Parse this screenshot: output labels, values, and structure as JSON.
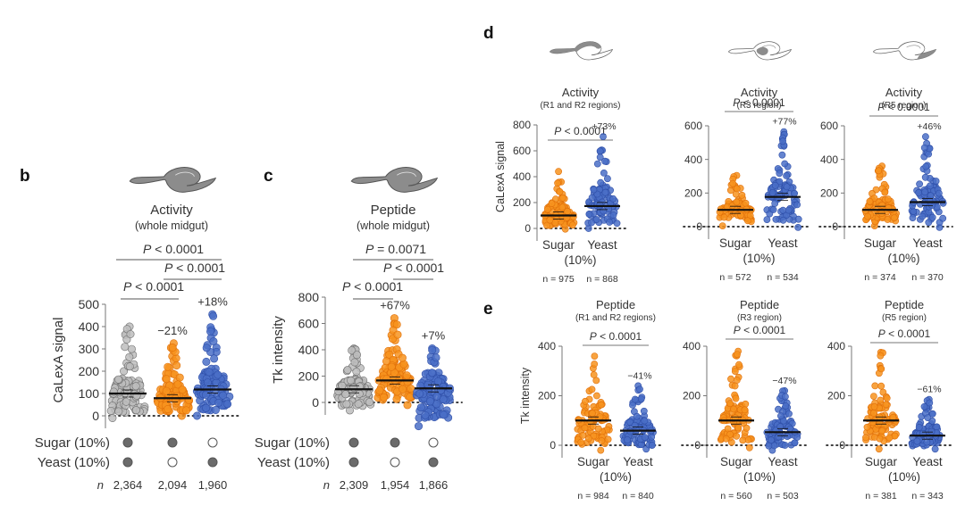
{
  "colors": {
    "sugar_only": "#f7931e",
    "sugar_only_edge": "#e0700a",
    "yeast_only": "#4a6fc7",
    "yeast_only_edge": "#2f4fa8",
    "both": "#bdbdbd",
    "both_edge": "#6e6e6e",
    "gut_fill": "#8c8c8c",
    "axis": "#777777",
    "text": "#333333"
  },
  "chart_data": [
    {
      "panel": "b",
      "type": "scatter",
      "subtype": "beeswarm",
      "title": "Activity",
      "subtitle": "(whole midgut)",
      "gut_highlight": "whole",
      "ylabel": "CaLexA signal",
      "ylim": [
        -20,
        500
      ],
      "yticks": [
        0,
        100,
        200,
        300,
        400,
        500
      ],
      "groups": [
        {
          "name": "Sugar + Yeast",
          "sugar": true,
          "yeast": true,
          "color_key": "both",
          "mean": 100,
          "max": 400,
          "min": -10,
          "n_label": "2,364",
          "change": ""
        },
        {
          "name": "Sugar only",
          "sugar": true,
          "yeast": false,
          "color_key": "sugar_only",
          "mean": 79,
          "max": 325,
          "min": 0,
          "n_label": "2,094",
          "change": "−21%"
        },
        {
          "name": "Yeast only",
          "sugar": false,
          "yeast": true,
          "color_key": "yeast_only",
          "mean": 118,
          "max": 455,
          "min": 0,
          "n_label": "1,960",
          "change": "+18%"
        }
      ],
      "comparisons": [
        {
          "from": 0,
          "to": 2,
          "label": "P < 0.0001",
          "p_prefix": "P",
          "p_rest": " < 0.0001"
        },
        {
          "from": 1,
          "to": 2,
          "label": "P < 0.0001",
          "p_prefix": "P",
          "p_rest": " < 0.0001"
        },
        {
          "from": 0,
          "to": 1,
          "label": "P < 0.0001",
          "p_prefix": "P",
          "p_rest": " < 0.0001"
        }
      ],
      "row_labels": [
        "Sugar (10%)",
        "Yeast (10%)"
      ],
      "n_prefix": "n"
    },
    {
      "panel": "c",
      "type": "scatter",
      "subtype": "beeswarm",
      "title": "Peptide",
      "subtitle": "(whole midgut)",
      "gut_highlight": "whole",
      "ylabel": "Tk intensity",
      "ylim": [
        -200,
        800
      ],
      "yticks": [
        0,
        200,
        400,
        600,
        800
      ],
      "groups": [
        {
          "name": "Sugar + Yeast",
          "sugar": true,
          "yeast": true,
          "color_key": "both",
          "mean": 100,
          "max": 410,
          "min": -60,
          "n_label": "2,309",
          "change": ""
        },
        {
          "name": "Sugar only",
          "sugar": true,
          "yeast": false,
          "color_key": "sugar_only",
          "mean": 167,
          "max": 640,
          "min": -20,
          "n_label": "1,954",
          "change": "+67%"
        },
        {
          "name": "Yeast only",
          "sugar": false,
          "yeast": true,
          "color_key": "yeast_only",
          "mean": 107,
          "max": 410,
          "min": -180,
          "n_label": "1,866",
          "change": "+7%"
        }
      ],
      "comparisons": [
        {
          "from": 0,
          "to": 2,
          "label": "P = 0.0071",
          "p_prefix": "P",
          "p_rest": " = 0.0071"
        },
        {
          "from": 1,
          "to": 2,
          "label": "P < 0.0001",
          "p_prefix": "P",
          "p_rest": " < 0.0001"
        },
        {
          "from": 0,
          "to": 1,
          "label": "P < 0.0001",
          "p_prefix": "P",
          "p_rest": " < 0.0001"
        }
      ],
      "row_labels": [
        "Sugar (10%)",
        "Yeast (10%)"
      ],
      "n_prefix": "n"
    },
    {
      "panel": "d",
      "type": "scatter",
      "subtype": "beeswarm",
      "title": "Activity",
      "subtitle": "(R1 and R2 regions)",
      "gut_highlight": "anterior",
      "ylabel": "CaLexA signal",
      "ylim": [
        -20,
        800
      ],
      "yticks": [
        0,
        200,
        400,
        600,
        800
      ],
      "groups": [
        {
          "name": "Sugar",
          "color_key": "sugar_only",
          "mean": 100,
          "max": 440,
          "min": -5,
          "n_label": "n = 975",
          "change": ""
        },
        {
          "name": "Yeast",
          "color_key": "yeast_only",
          "mean": 173,
          "max": 710,
          "min": 0,
          "n_label": "n = 868",
          "change": "+73%"
        }
      ],
      "comparisons": [
        {
          "from": 0,
          "to": 1,
          "label": "P < 0.0001",
          "p_prefix": "P",
          "p_rest": " < 0.0001"
        }
      ],
      "x_labels": [
        "Sugar",
        "Yeast"
      ],
      "x_sublabel": "(10%)"
    },
    {
      "panel": "d",
      "type": "scatter",
      "subtype": "beeswarm",
      "title": "Activity",
      "subtitle": "(R3 region)",
      "gut_highlight": "middle",
      "ylabel": "",
      "ylim": [
        -20,
        600
      ],
      "yticks": [
        0,
        200,
        400,
        600
      ],
      "groups": [
        {
          "name": "Sugar",
          "color_key": "sugar_only",
          "mean": 100,
          "max": 305,
          "min": 5,
          "n_label": "n = 572",
          "change": ""
        },
        {
          "name": "Yeast",
          "color_key": "yeast_only",
          "mean": 177,
          "max": 565,
          "min": -5,
          "n_label": "n = 534",
          "change": "+77%"
        }
      ],
      "comparisons": [
        {
          "from": 0,
          "to": 1,
          "label": "P < 0.0001",
          "p_prefix": "P",
          "p_rest": " < 0.0001"
        }
      ],
      "x_labels": [
        "Sugar",
        "Yeast"
      ],
      "x_sublabel": "(10%)"
    },
    {
      "panel": "d",
      "type": "scatter",
      "subtype": "beeswarm",
      "title": "Activity",
      "subtitle": "(R5 region)",
      "gut_highlight": "posterior",
      "ylabel": "",
      "ylim": [
        -20,
        600
      ],
      "yticks": [
        0,
        200,
        400,
        600
      ],
      "groups": [
        {
          "name": "Sugar",
          "color_key": "sugar_only",
          "mean": 100,
          "max": 360,
          "min": 5,
          "n_label": "n = 374",
          "change": ""
        },
        {
          "name": "Yeast",
          "color_key": "yeast_only",
          "mean": 146,
          "max": 535,
          "min": -5,
          "n_label": "n = 370",
          "change": "+46%"
        }
      ],
      "comparisons": [
        {
          "from": 0,
          "to": 1,
          "label": "P < 0.0001",
          "p_prefix": "P",
          "p_rest": " < 0.0001"
        }
      ],
      "x_labels": [
        "Sugar",
        "Yeast"
      ],
      "x_sublabel": "(10%)"
    },
    {
      "panel": "e",
      "type": "scatter",
      "subtype": "beeswarm",
      "title": "Peptide",
      "subtitle": "(R1 and R2 regions)",
      "ylabel": "Tk intensity",
      "ylim": [
        -25,
        400
      ],
      "yticks": [
        0,
        200,
        400
      ],
      "groups": [
        {
          "name": "Sugar",
          "color_key": "sugar_only",
          "mean": 100,
          "max": 360,
          "min": -20,
          "n_label": "n = 984",
          "change": ""
        },
        {
          "name": "Yeast",
          "color_key": "yeast_only",
          "mean": 59,
          "max": 240,
          "min": -15,
          "n_label": "n = 840",
          "change": "−41%"
        }
      ],
      "comparisons": [
        {
          "from": 0,
          "to": 1,
          "label": "P < 0.0001",
          "p_prefix": "P",
          "p_rest": " < 0.0001"
        }
      ],
      "x_labels": [
        "Sugar",
        "Yeast"
      ],
      "x_sublabel": "(10%)"
    },
    {
      "panel": "e",
      "type": "scatter",
      "subtype": "beeswarm",
      "title": "Peptide",
      "subtitle": "(R3 region)",
      "ylabel": "",
      "ylim": [
        -25,
        400
      ],
      "yticks": [
        0,
        200,
        400
      ],
      "groups": [
        {
          "name": "Sugar",
          "color_key": "sugar_only",
          "mean": 100,
          "max": 380,
          "min": -10,
          "n_label": "n = 560",
          "change": ""
        },
        {
          "name": "Yeast",
          "color_key": "yeast_only",
          "mean": 53,
          "max": 220,
          "min": -20,
          "n_label": "n = 503",
          "change": "−47%"
        }
      ],
      "comparisons": [
        {
          "from": 0,
          "to": 1,
          "label": "P < 0.0001",
          "p_prefix": "P",
          "p_rest": " < 0.0001"
        }
      ],
      "x_labels": [
        "Sugar",
        "Yeast"
      ],
      "x_sublabel": "(10%)"
    },
    {
      "panel": "e",
      "type": "scatter",
      "subtype": "beeswarm",
      "title": "Peptide",
      "subtitle": "(R5 region)",
      "ylabel": "",
      "ylim": [
        -25,
        400
      ],
      "yticks": [
        0,
        200,
        400
      ],
      "groups": [
        {
          "name": "Sugar",
          "color_key": "sugar_only",
          "mean": 100,
          "max": 375,
          "min": -15,
          "n_label": "n = 381",
          "change": ""
        },
        {
          "name": "Yeast",
          "color_key": "yeast_only",
          "mean": 39,
          "max": 185,
          "min": -15,
          "n_label": "n = 343",
          "change": "−61%"
        }
      ],
      "comparisons": [
        {
          "from": 0,
          "to": 1,
          "label": "P < 0.0001",
          "p_prefix": "P",
          "p_rest": " < 0.0001"
        }
      ],
      "x_labels": [
        "Sugar",
        "Yeast"
      ],
      "x_sublabel": "(10%)"
    }
  ],
  "panel_letters": [
    "b",
    "c",
    "d",
    "e"
  ]
}
